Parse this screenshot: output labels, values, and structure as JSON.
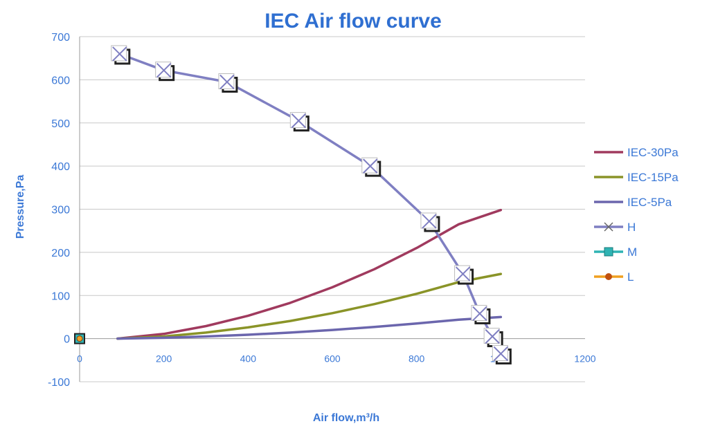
{
  "chart_data": {
    "type": "line",
    "title": "IEC Air flow curve",
    "xlabel": "Air flow,m³/h",
    "ylabel": "Pressure,Pa",
    "xlim": [
      0,
      1200
    ],
    "ylim": [
      -100,
      700
    ],
    "x_ticks": [
      "0",
      "200",
      "400",
      "600",
      "800",
      "1000",
      "1200"
    ],
    "y_ticks": [
      "-100",
      "0",
      "100",
      "200",
      "300",
      "400",
      "500",
      "600",
      "700"
    ],
    "grid": "horizontal",
    "legend_position": "right",
    "series": [
      {
        "name": "IEC-30Pa",
        "color": "#a03a5e",
        "marker": "none",
        "points": [
          [
            90,
            0
          ],
          [
            200,
            11
          ],
          [
            300,
            29
          ],
          [
            400,
            53
          ],
          [
            500,
            83
          ],
          [
            600,
            119
          ],
          [
            700,
            161
          ],
          [
            800,
            210
          ],
          [
            900,
            265
          ],
          [
            1000,
            298
          ]
        ]
      },
      {
        "name": "IEC-15Pa",
        "color": "#8a9428",
        "marker": "none",
        "points": [
          [
            90,
            0
          ],
          [
            200,
            5
          ],
          [
            300,
            14
          ],
          [
            400,
            26
          ],
          [
            500,
            41
          ],
          [
            600,
            59
          ],
          [
            700,
            80
          ],
          [
            800,
            104
          ],
          [
            900,
            131
          ],
          [
            1000,
            150
          ]
        ]
      },
      {
        "name": "IEC-5Pa",
        "color": "#6b66ad",
        "marker": "none",
        "points": [
          [
            90,
            0
          ],
          [
            200,
            2
          ],
          [
            300,
            5
          ],
          [
            400,
            9
          ],
          [
            500,
            14
          ],
          [
            600,
            20
          ],
          [
            700,
            27
          ],
          [
            800,
            35
          ],
          [
            900,
            44
          ],
          [
            1000,
            50
          ]
        ]
      },
      {
        "name": "H",
        "color": "#7f7fc2",
        "marker": "x-box",
        "points": [
          [
            95,
            660
          ],
          [
            200,
            622
          ],
          [
            350,
            595
          ],
          [
            520,
            505
          ],
          [
            690,
            400
          ],
          [
            830,
            272
          ],
          [
            910,
            150
          ],
          [
            950,
            58
          ],
          [
            980,
            5
          ],
          [
            1000,
            -35
          ]
        ]
      },
      {
        "name": "M",
        "color": "#2fb3b3",
        "marker": "square",
        "points": [
          [
            0,
            0
          ]
        ]
      },
      {
        "name": "L",
        "color": "#f0a020",
        "marker": "dot",
        "points": [
          [
            0,
            0
          ]
        ]
      }
    ]
  }
}
